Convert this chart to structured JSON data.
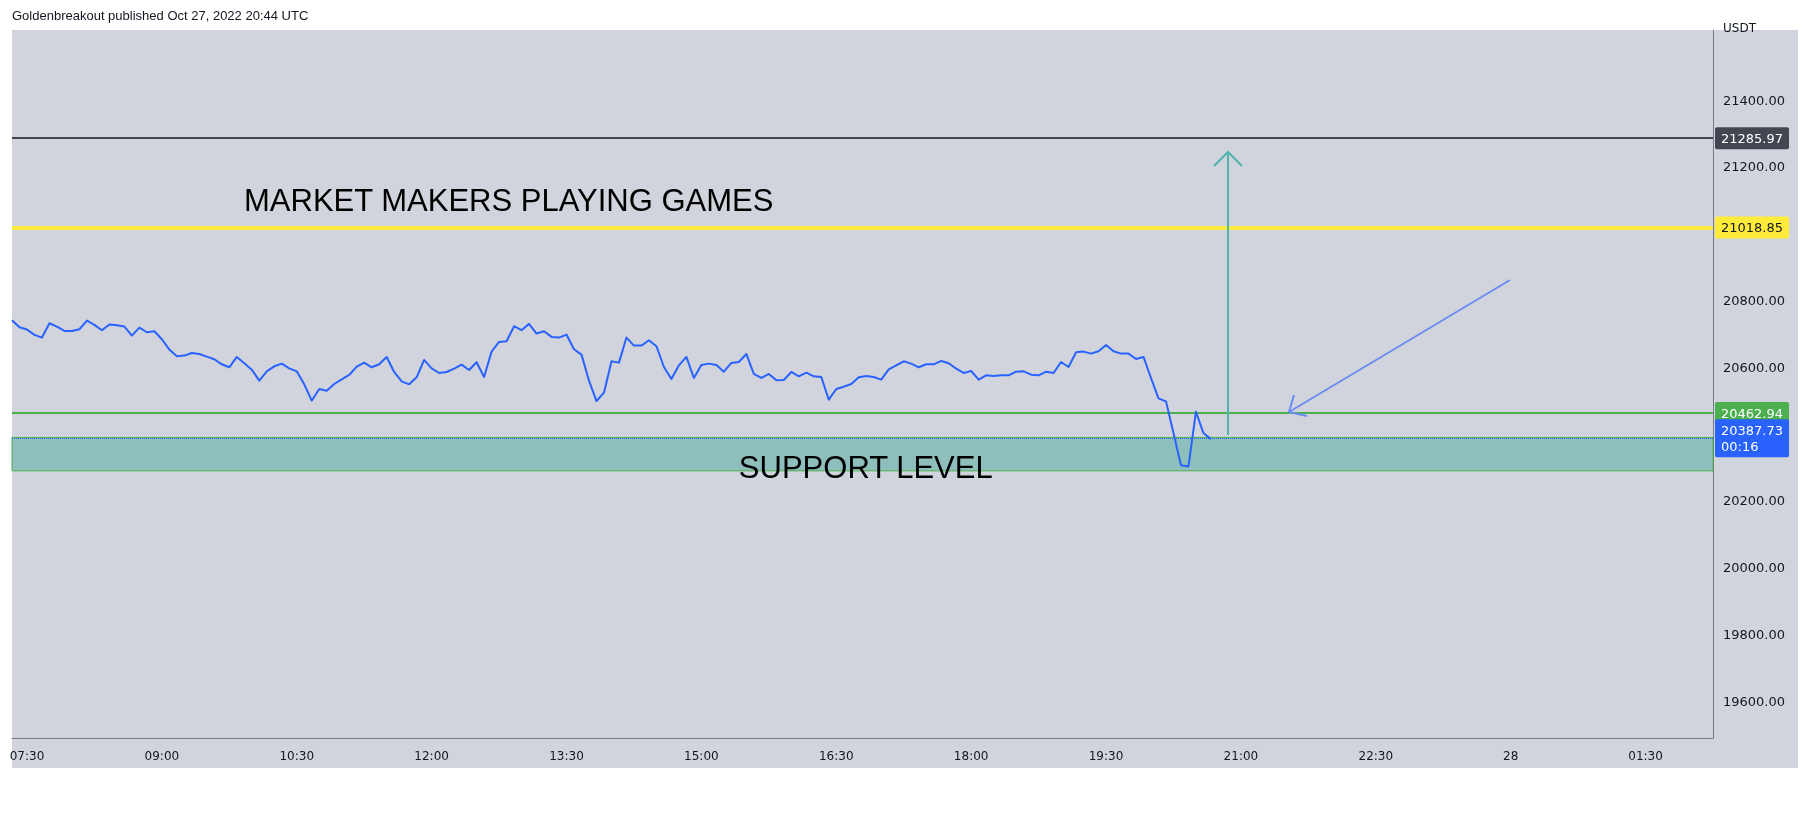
{
  "chart_data": {
    "type": "line",
    "annotations": [
      "Goldenbreakout published Oct 27, 2022 20:44 UTC",
      "MARKET MAKERS PLAYING GAMES",
      {
        "text": "SUPPORT LEVEL",
        "x": "2022-10-27T15:25",
        "y": 20300
      }
    ],
    "ylabel": "USDT",
    "x": [
      "2022-10-27T07:20",
      "2022-10-27T07:25",
      "2022-10-27T07:30",
      "2022-10-27T07:35",
      "2022-10-27T07:40",
      "2022-10-27T07:45",
      "2022-10-27T07:50",
      "2022-10-27T07:55",
      "2022-10-27T08:00",
      "2022-10-27T08:05",
      "2022-10-27T08:10",
      "2022-10-27T08:15",
      "2022-10-27T08:20",
      "2022-10-27T08:25",
      "2022-10-27T08:30",
      "2022-10-27T08:35",
      "2022-10-27T08:40",
      "2022-10-27T08:45",
      "2022-10-27T08:50",
      "2022-10-27T08:55",
      "2022-10-27T09:00",
      "2022-10-27T09:05",
      "2022-10-27T09:10",
      "2022-10-27T09:15",
      "2022-10-27T09:20",
      "2022-10-27T09:25",
      "2022-10-27T09:30",
      "2022-10-27T09:35",
      "2022-10-27T09:40",
      "2022-10-27T09:45",
      "2022-10-27T09:50",
      "2022-10-27T09:55",
      "2022-10-27T10:00",
      "2022-10-27T10:05",
      "2022-10-27T10:10",
      "2022-10-27T10:15",
      "2022-10-27T10:20",
      "2022-10-27T10:25",
      "2022-10-27T10:30",
      "2022-10-27T10:35",
      "2022-10-27T10:40",
      "2022-10-27T10:45",
      "2022-10-27T10:50",
      "2022-10-27T10:55",
      "2022-10-27T11:00",
      "2022-10-27T11:05",
      "2022-10-27T11:10",
      "2022-10-27T11:15",
      "2022-10-27T11:20",
      "2022-10-27T11:25",
      "2022-10-27T11:30",
      "2022-10-27T11:35",
      "2022-10-27T11:40",
      "2022-10-27T11:45",
      "2022-10-27T11:50",
      "2022-10-27T11:55",
      "2022-10-27T12:00",
      "2022-10-27T12:05",
      "2022-10-27T12:10",
      "2022-10-27T12:15",
      "2022-10-27T12:20",
      "2022-10-27T12:25",
      "2022-10-27T12:30",
      "2022-10-27T12:35",
      "2022-10-27T12:40",
      "2022-10-27T12:45",
      "2022-10-27T12:50",
      "2022-10-27T12:55",
      "2022-10-27T13:00",
      "2022-10-27T13:05",
      "2022-10-27T13:10",
      "2022-10-27T13:15",
      "2022-10-27T13:20",
      "2022-10-27T13:25",
      "2022-10-27T13:30",
      "2022-10-27T13:35",
      "2022-10-27T13:40",
      "2022-10-27T13:45",
      "2022-10-27T13:50",
      "2022-10-27T13:55",
      "2022-10-27T14:00",
      "2022-10-27T14:05",
      "2022-10-27T14:10",
      "2022-10-27T14:15",
      "2022-10-27T14:20",
      "2022-10-27T14:25",
      "2022-10-27T14:30",
      "2022-10-27T14:35",
      "2022-10-27T14:40",
      "2022-10-27T14:45",
      "2022-10-27T14:50",
      "2022-10-27T14:55",
      "2022-10-27T15:00",
      "2022-10-27T15:05",
      "2022-10-27T15:10",
      "2022-10-27T15:15",
      "2022-10-27T15:20",
      "2022-10-27T15:25",
      "2022-10-27T15:30",
      "2022-10-27T15:35",
      "2022-10-27T15:40",
      "2022-10-27T15:45",
      "2022-10-27T15:50",
      "2022-10-27T15:55",
      "2022-10-27T16:00",
      "2022-10-27T16:05",
      "2022-10-27T16:10",
      "2022-10-27T16:15",
      "2022-10-27T16:20",
      "2022-10-27T16:25",
      "2022-10-27T16:30",
      "2022-10-27T16:35",
      "2022-10-27T16:40",
      "2022-10-27T16:45",
      "2022-10-27T16:50",
      "2022-10-27T16:55",
      "2022-10-27T17:00",
      "2022-10-27T17:05",
      "2022-10-27T17:10",
      "2022-10-27T17:15",
      "2022-10-27T17:20",
      "2022-10-27T17:25",
      "2022-10-27T17:30",
      "2022-10-27T17:35",
      "2022-10-27T17:40",
      "2022-10-27T17:45",
      "2022-10-27T17:50",
      "2022-10-27T17:55",
      "2022-10-27T18:00",
      "2022-10-27T18:05",
      "2022-10-27T18:10",
      "2022-10-27T18:15",
      "2022-10-27T18:20",
      "2022-10-27T18:25",
      "2022-10-27T18:30",
      "2022-10-27T18:35",
      "2022-10-27T18:40",
      "2022-10-27T18:45",
      "2022-10-27T18:50",
      "2022-10-27T18:55",
      "2022-10-27T19:00",
      "2022-10-27T19:05",
      "2022-10-27T19:10",
      "2022-10-27T19:15",
      "2022-10-27T19:20",
      "2022-10-27T19:25",
      "2022-10-27T19:30",
      "2022-10-27T19:35",
      "2022-10-27T19:40",
      "2022-10-27T19:45",
      "2022-10-27T19:50",
      "2022-10-27T19:55",
      "2022-10-27T20:00",
      "2022-10-27T20:05",
      "2022-10-27T20:10",
      "2022-10-27T20:15",
      "2022-10-27T20:20",
      "2022-10-27T20:25",
      "2022-10-27T20:30",
      "2022-10-27T20:35",
      "2022-10-27T20:40"
    ],
    "values": [
      20741,
      20720,
      20713,
      20697,
      20689,
      20732,
      20722,
      20709,
      20709,
      20714,
      20740,
      20727,
      20711,
      20728,
      20726,
      20722,
      20695,
      20719,
      20705,
      20708,
      20684,
      20653,
      20633,
      20635,
      20643,
      20640,
      20632,
      20624,
      20609,
      20600,
      20631,
      20612,
      20593,
      20560,
      20588,
      20603,
      20611,
      20597,
      20588,
      20549,
      20500,
      20535,
      20530,
      20550,
      20564,
      20577,
      20602,
      20614,
      20600,
      20609,
      20631,
      20586,
      20558,
      20549,
      20570,
      20622,
      20597,
      20583,
      20586,
      20596,
      20608,
      20592,
      20615,
      20571,
      20647,
      20676,
      20678,
      20723,
      20711,
      20730,
      20701,
      20708,
      20691,
      20689,
      20698,
      20654,
      20638,
      20560,
      20499,
      20524,
      20618,
      20614,
      20689,
      20665,
      20665,
      20681,
      20663,
      20601,
      20565,
      20606,
      20631,
      20568,
      20607,
      20611,
      20607,
      20587,
      20613,
      20616,
      20640,
      20580,
      20568,
      20580,
      20561,
      20562,
      20586,
      20573,
      20584,
      20573,
      20571,
      20503,
      20535,
      20542,
      20550,
      20570,
      20574,
      20571,
      20563,
      20594,
      20606,
      20618,
      20611,
      20600,
      20609,
      20609,
      20619,
      20612,
      20596,
      20583,
      20589,
      20563,
      20576,
      20574,
      20576,
      20576,
      20587,
      20588,
      20578,
      20576,
      20587,
      20583,
      20616,
      20601,
      20645,
      20647,
      20641,
      20648,
      20667,
      20648,
      20641,
      20641,
      20625,
      20631,
      20568,
      20507,
      20498,
      20403,
      20307,
      20303,
      20467,
      20403,
      20385
    ],
    "color": "#2962ff",
    "xlim": [
      "2022-10-27T07:20",
      "2022-10-28T02:15"
    ],
    "xticks": [
      {
        "value": "2022-10-27T07:30",
        "label": "07:30"
      },
      {
        "value": "2022-10-27T09:00",
        "label": "09:00"
      },
      {
        "value": "2022-10-27T10:30",
        "label": "10:30"
      },
      {
        "value": "2022-10-27T12:00",
        "label": "12:00"
      },
      {
        "value": "2022-10-27T13:30",
        "label": "13:30"
      },
      {
        "value": "2022-10-27T15:00",
        "label": "15:00"
      },
      {
        "value": "2022-10-27T16:30",
        "label": "16:30"
      },
      {
        "value": "2022-10-27T18:00",
        "label": "18:00"
      },
      {
        "value": "2022-10-27T19:30",
        "label": "19:30"
      },
      {
        "value": "2022-10-27T21:00",
        "label": "21:00"
      },
      {
        "value": "2022-10-27T22:30",
        "label": "22:30"
      },
      {
        "value": "2022-10-28T00:00",
        "label": "28"
      },
      {
        "value": "2022-10-28T01:30",
        "label": "01:30"
      }
    ],
    "ylim": [
      19490,
      21610
    ],
    "yticks": [
      {
        "value": 19600,
        "label": "19600.00"
      },
      {
        "value": 19800,
        "label": "19800.00"
      },
      {
        "value": 20000,
        "label": "20000.00"
      },
      {
        "value": 20200,
        "label": "20200.00"
      },
      {
        "value": 20600,
        "label": "20600.00"
      },
      {
        "value": 20800,
        "label": "20800.00"
      },
      {
        "value": 21200,
        "label": "21200.00"
      },
      {
        "value": 21400,
        "label": "21400.00"
      }
    ],
    "ref_lines": [
      {
        "axis": "y",
        "value": 21285.97,
        "label": "21285.97",
        "color": "#434651"
      },
      {
        "axis": "y",
        "value": 21018.85,
        "label": "21018.85",
        "color": "#ffeb3b"
      },
      {
        "axis": "y",
        "value": 20462.94,
        "label": "20462.94",
        "color": "#4caf50"
      },
      {
        "axis": "y",
        "value": 20387.73,
        "label": "20387.73\n00:16",
        "color": "#2962ff",
        "line_style": "dotted"
      }
    ],
    "bands": [
      {
        "axis": "y",
        "from": 20290,
        "to": 20390,
        "color": "#8fbfbd"
      }
    ],
    "grid": false,
    "marker": "none"
  }
}
